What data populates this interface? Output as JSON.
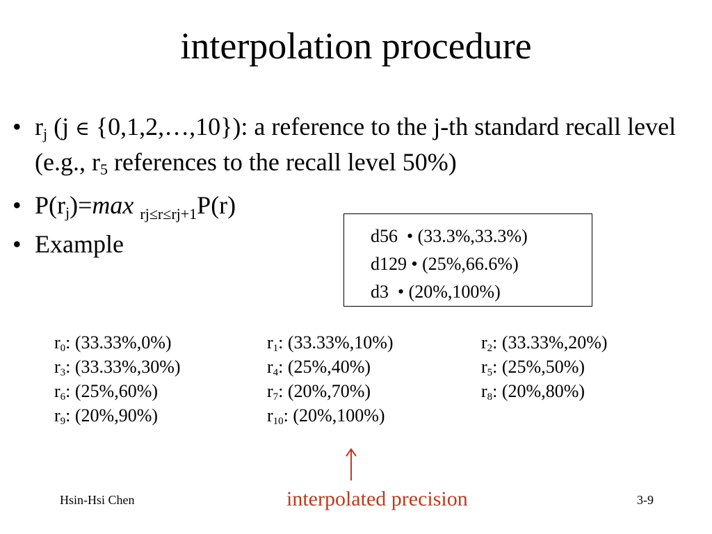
{
  "slide": {
    "title": "interpolation procedure",
    "bullet_symbol": "•",
    "bullets": {
      "b1": {
        "r": "r",
        "r_sub": "j",
        "open": " (j ",
        "in_symbol": "∈",
        "set_text": " {0,1,2,…,10}): a reference to the j-th standard recall level (e.g., r",
        "r5_sub": "5",
        "rest": " references to the recall level 50%)"
      },
      "b2": {
        "p_open": "P(r",
        "p_sub": "j",
        "p_close": ")=",
        "max": "max",
        "range_sub": "rj≤r≤rj+1",
        "tail": "P(r)"
      },
      "b3": {
        "text": "Example"
      }
    },
    "box_rows": [
      {
        "doc": "d56  ",
        "dot": "•",
        "value": " (33.3%,33.3%)"
      },
      {
        "doc": "d129 ",
        "dot": "•",
        "value": " (25%,66.6%)"
      },
      {
        "doc": "d3  ",
        "dot": "•",
        "value": " (20%,100%)"
      }
    ],
    "levels": [
      {
        "r": "r",
        "sub": "0",
        "value": ": (33.33%,0%)"
      },
      {
        "r": "r",
        "sub": "1",
        "value": ": (33.33%,10%)"
      },
      {
        "r": "r",
        "sub": "2",
        "value": ": (33.33%,20%)"
      },
      {
        "r": "r",
        "sub": "3",
        "value": ": (33.33%,30%)"
      },
      {
        "r": "r",
        "sub": "4",
        "value": ": (25%,40%)"
      },
      {
        "r": "r",
        "sub": "5",
        "value": ": (25%,50%)"
      },
      {
        "r": "r",
        "sub": "6",
        "value": ": (25%,60%)"
      },
      {
        "r": "r",
        "sub": "7",
        "value": ": (20%,70%)"
      },
      {
        "r": "r",
        "sub": "8",
        "value": ": (20%,80%)"
      },
      {
        "r": "r",
        "sub": "9",
        "value": ": (20%,90%)"
      },
      {
        "r": "r",
        "sub": "10",
        "value": ": (20%,100%)"
      }
    ],
    "annotation": {
      "text": "interpolated precision",
      "color": "#c0391b"
    },
    "footer": {
      "author": "Hsin-Hsi Chen",
      "page": "3-9"
    }
  }
}
